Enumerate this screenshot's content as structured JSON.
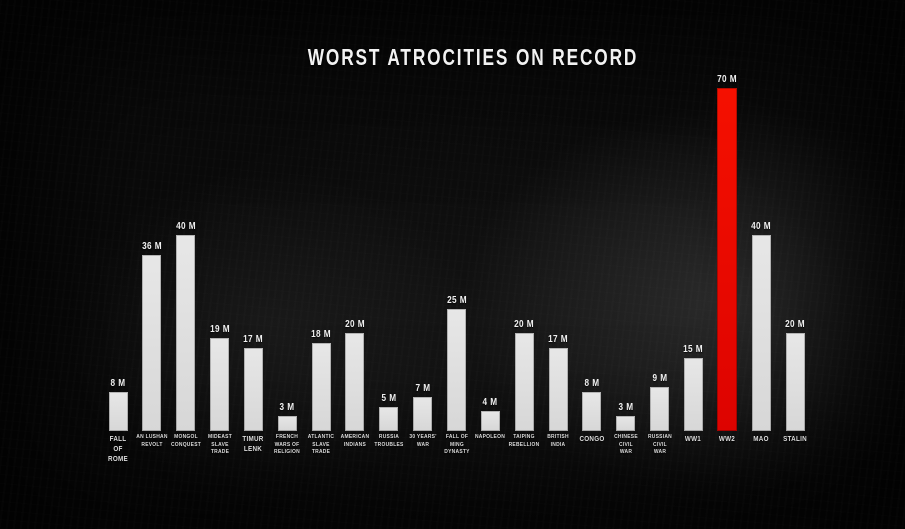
{
  "title": "WORST ATROCITIES ON RECORD",
  "colors": {
    "background": "#0a0a0a",
    "bar": "#e2e2e2",
    "highlight_bar": "#ee0c00",
    "text": "#f0f0f0"
  },
  "chart_data": {
    "type": "bar",
    "title": "WORST ATROCITIES ON RECORD",
    "xlabel": "",
    "ylabel": "",
    "unit": "millions of deaths",
    "value_suffix": " M",
    "ylim": [
      0,
      75
    ],
    "grid": false,
    "legend": null,
    "highlight_index": 18,
    "categories": [
      "FALL OF ROME",
      "AN LUSHAN REVOLT",
      "MONGOL CONQUEST",
      "MIDEAST SLAVE TRADE",
      "TIMUR LENK",
      "FRENCH WARS OF RELIGION",
      "ATLANTIC SLAVE TRADE",
      "AMERICAN INDIANS",
      "RUSSIA TROUBLES",
      "30 YEARS' WAR",
      "FALL OF MING DYNASTY",
      "NAPOLEON",
      "TAIPING REBELLION",
      "BRITISH INDIA",
      "CONGO",
      "CHINESE CIVIL WAR",
      "RUSSIAN CIVIL WAR",
      "WW1",
      "WW2",
      "MAO",
      "STALIN"
    ],
    "values": [
      8,
      36,
      40,
      19,
      17,
      3,
      18,
      20,
      5,
      7,
      25,
      4,
      20,
      17,
      8,
      3,
      9,
      15,
      70,
      40,
      20
    ],
    "bars": [
      {
        "category": "FALL OF ROME",
        "lines": [
          "FALL",
          "OF",
          "ROME"
        ],
        "value": 8,
        "value_label": "8 M",
        "highlight": false
      },
      {
        "category": "AN LUSHAN REVOLT",
        "lines": [
          "AN LUSHAN",
          "REVOLT"
        ],
        "value": 36,
        "value_label": "36 M",
        "highlight": false
      },
      {
        "category": "MONGOL CONQUEST",
        "lines": [
          "MONGOL",
          "CONQUEST"
        ],
        "value": 40,
        "value_label": "40 M",
        "highlight": false
      },
      {
        "category": "MIDEAST SLAVE TRADE",
        "lines": [
          "MIDEAST",
          "SLAVE",
          "TRADE"
        ],
        "value": 19,
        "value_label": "19 M",
        "highlight": false
      },
      {
        "category": "TIMUR LENK",
        "lines": [
          "TIMUR",
          "LENK"
        ],
        "value": 17,
        "value_label": "17 M",
        "highlight": false
      },
      {
        "category": "FRENCH WARS OF RELIGION",
        "lines": [
          "FRENCH",
          "WARS OF",
          "RELIGION"
        ],
        "value": 3,
        "value_label": "3 M",
        "highlight": false
      },
      {
        "category": "ATLANTIC SLAVE TRADE",
        "lines": [
          "ATLANTIC",
          "SLAVE",
          "TRADE"
        ],
        "value": 18,
        "value_label": "18 M",
        "highlight": false
      },
      {
        "category": "AMERICAN INDIANS",
        "lines": [
          "AMERICAN",
          "INDIANS"
        ],
        "value": 20,
        "value_label": "20 M",
        "highlight": false
      },
      {
        "category": "RUSSIA TROUBLES",
        "lines": [
          "RUSSIA",
          "TROUBLES"
        ],
        "value": 5,
        "value_label": "5 M",
        "highlight": false
      },
      {
        "category": "30 YEARS' WAR",
        "lines": [
          "30 YEARS'",
          "WAR"
        ],
        "value": 7,
        "value_label": "7 M",
        "highlight": false
      },
      {
        "category": "FALL OF MING DYNASTY",
        "lines": [
          "FALL OF",
          "MING",
          "DYNASTY"
        ],
        "value": 25,
        "value_label": "25 M",
        "highlight": false
      },
      {
        "category": "NAPOLEON",
        "lines": [
          "NAPOLEON"
        ],
        "value": 4,
        "value_label": "4 M",
        "highlight": false
      },
      {
        "category": "TAIPING REBELLION",
        "lines": [
          "TAIPING",
          "REBELLION"
        ],
        "value": 20,
        "value_label": "20 M",
        "highlight": false
      },
      {
        "category": "BRITISH INDIA",
        "lines": [
          "BRITISH",
          "INDIA"
        ],
        "value": 17,
        "value_label": "17 M",
        "highlight": false
      },
      {
        "category": "CONGO",
        "lines": [
          "CONGO"
        ],
        "value": 8,
        "value_label": "8 M",
        "highlight": false
      },
      {
        "category": "CHINESE CIVIL WAR",
        "lines": [
          "CHINESE",
          "CIVIL",
          "WAR"
        ],
        "value": 3,
        "value_label": "3 M",
        "highlight": false
      },
      {
        "category": "RUSSIAN CIVIL WAR",
        "lines": [
          "RUSSIAN",
          "CIVIL",
          "WAR"
        ],
        "value": 9,
        "value_label": "9 M",
        "highlight": false
      },
      {
        "category": "WW1",
        "lines": [
          "WW1"
        ],
        "value": 15,
        "value_label": "15 M",
        "highlight": false
      },
      {
        "category": "WW2",
        "lines": [
          "WW2"
        ],
        "value": 70,
        "value_label": "70 M",
        "highlight": true
      },
      {
        "category": "MAO",
        "lines": [
          "MAO"
        ],
        "value": 40,
        "value_label": "40 M",
        "highlight": false
      },
      {
        "category": "STALIN",
        "lines": [
          "STALIN"
        ],
        "value": 20,
        "value_label": "20 M",
        "highlight": false
      }
    ]
  }
}
